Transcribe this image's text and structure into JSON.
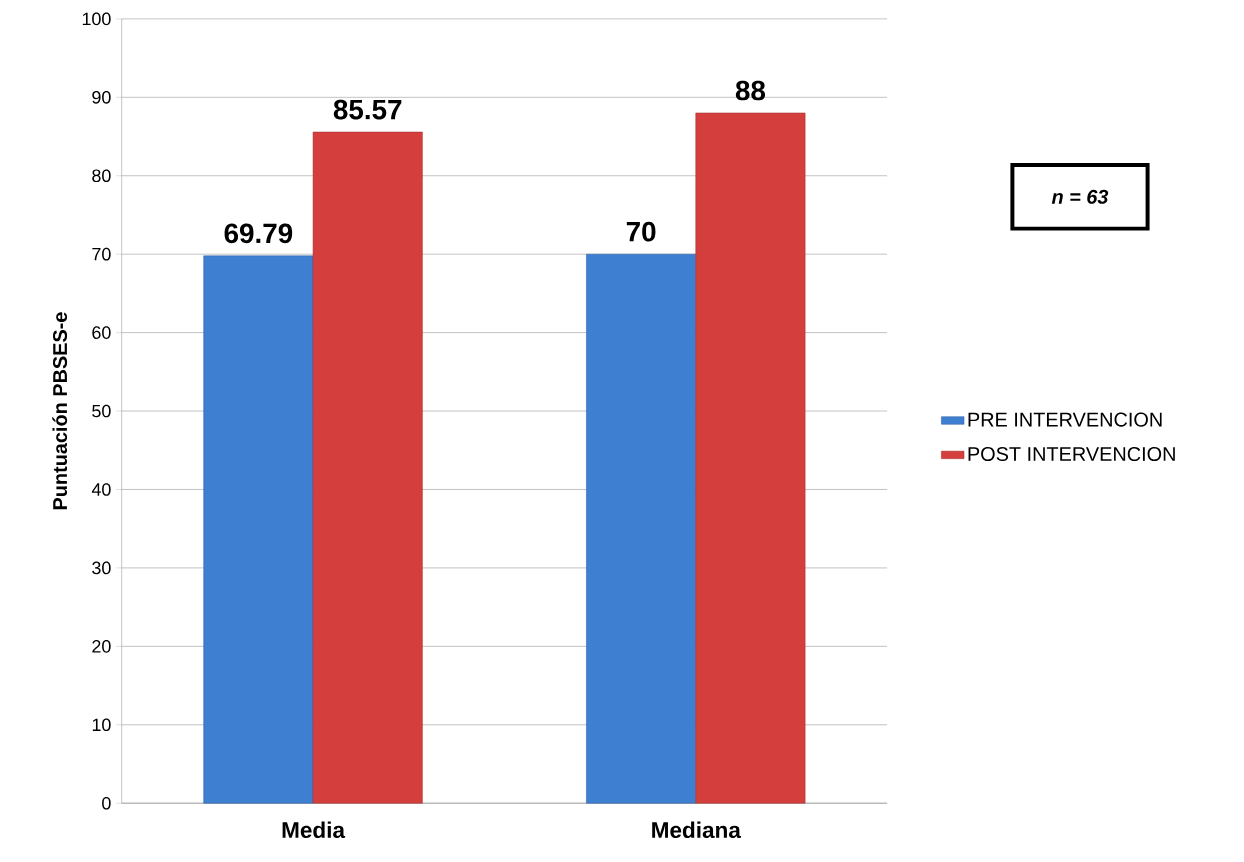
{
  "chart_data": {
    "type": "bar",
    "ylabel": "Puntuación PBSES-e",
    "categories": [
      "Media",
      "Mediana"
    ],
    "series": [
      {
        "name": "PRE INTERVENCION",
        "color": "#3f7fd2",
        "values": [
          69.79,
          70
        ],
        "value_labels": [
          "69.79",
          "70"
        ]
      },
      {
        "name": "POST INTERVENCION",
        "color": "#d43f3d",
        "values": [
          85.57,
          88
        ],
        "value_labels": [
          "85.57",
          "88"
        ]
      }
    ],
    "ylim": [
      0,
      100
    ],
    "yticks": [
      0,
      10,
      20,
      30,
      40,
      50,
      60,
      70,
      80,
      90,
      100
    ],
    "grid": "y",
    "legend": "right",
    "annotations": [
      "n = 63"
    ]
  }
}
